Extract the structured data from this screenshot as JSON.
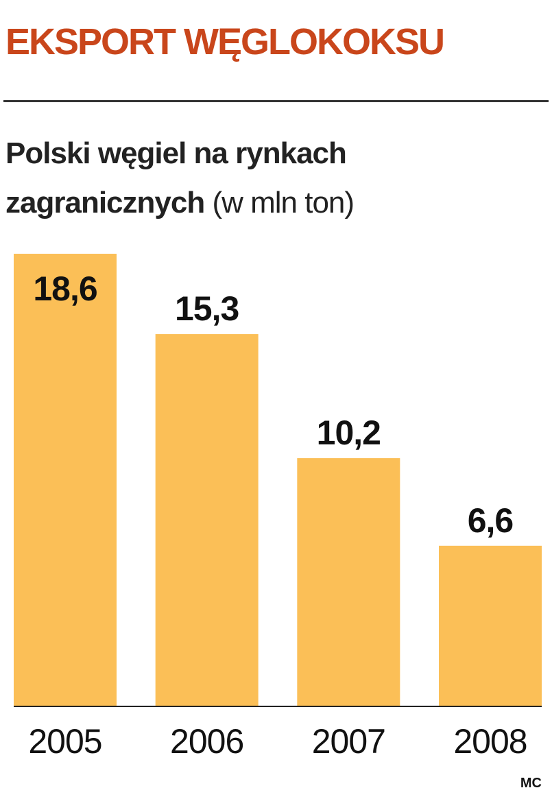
{
  "chart_data": {
    "type": "bar",
    "title": "EKSPORT WĘGLOKOKSU",
    "subtitle": "Polski węgiel na rynkach zagranicznych",
    "unit": "(w mln ton)",
    "categories": [
      "2005",
      "2006",
      "2007",
      "2008"
    ],
    "values": [
      18.6,
      15.3,
      10.2,
      6.6
    ],
    "value_labels": [
      "18,6",
      "15,3",
      "10,2",
      "6,6"
    ],
    "color": "#fbbf57",
    "source": "MC"
  }
}
